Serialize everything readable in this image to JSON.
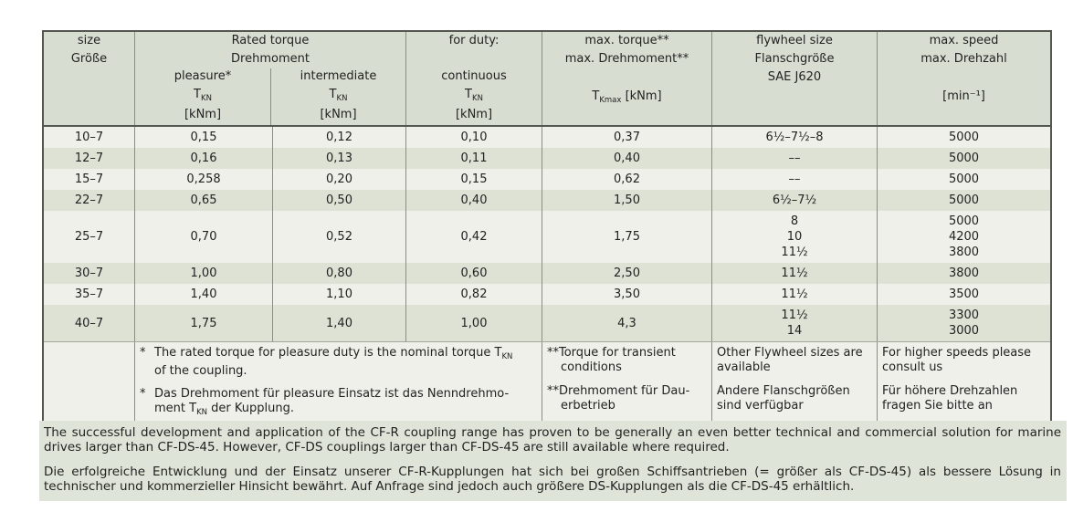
{
  "colors": {
    "header_bg": "#d8ddd1",
    "row_light": "#eef0e9",
    "row_dark": "#dde2d5",
    "band_bg": "#dfe4d8",
    "border_dark": "#54574f",
    "border_light": "#898d84",
    "text": "#222222"
  },
  "table": {
    "header": {
      "size": [
        "size",
        "Größe"
      ],
      "rated_torque": [
        "Rated torque",
        "Drehmoment"
      ],
      "pleasure": {
        "label": "pleasure*",
        "symbol": "T",
        "symbol_sub": "KN",
        "unit": "[kNm]"
      },
      "intermediate": {
        "label": "intermediate",
        "symbol": "T",
        "symbol_sub": "KN",
        "unit": "[kNm]"
      },
      "duty_label": "for duty:",
      "continuous": {
        "label": "continuous",
        "symbol": "T",
        "symbol_sub": "KN",
        "unit": "[kNm]"
      },
      "max_torque": {
        "line1": "max. torque**",
        "line2": "max. Drehmoment**",
        "symbol": "T",
        "symbol_sub": "Kmax",
        "unit": "[kNm]"
      },
      "flywheel": [
        "flywheel size",
        "Flanschgröße",
        "SAE J620"
      ],
      "max_speed": [
        "max. speed",
        "max. Drehzahl",
        "[min⁻¹]"
      ]
    },
    "rows": [
      {
        "size": "10–7",
        "pleasure": "0,15",
        "intermediate": "0,12",
        "continuous": "0,10",
        "max_torque": "0,37",
        "flywheel": [
          "6½–7½–8"
        ],
        "speed": [
          "5000"
        ]
      },
      {
        "size": "12–7",
        "pleasure": "0,16",
        "intermediate": "0,13",
        "continuous": "0,11",
        "max_torque": "0,40",
        "flywheel": [
          "––"
        ],
        "speed": [
          "5000"
        ]
      },
      {
        "size": "15–7",
        "pleasure": "0,258",
        "intermediate": "0,20",
        "continuous": "0,15",
        "max_torque": "0,62",
        "flywheel": [
          "––"
        ],
        "speed": [
          "5000"
        ]
      },
      {
        "size": "22–7",
        "pleasure": "0,65",
        "intermediate": "0,50",
        "continuous": "0,40",
        "max_torque": "1,50",
        "flywheel": [
          "6½–7½"
        ],
        "speed": [
          "5000"
        ]
      },
      {
        "size": "25–7",
        "pleasure": "0,70",
        "intermediate": "0,52",
        "continuous": "0,42",
        "max_torque": "1,75",
        "flywheel": [
          "8",
          "10",
          "11½"
        ],
        "speed": [
          "5000",
          "4200",
          "3800"
        ]
      },
      {
        "size": "30–7",
        "pleasure": "1,00",
        "intermediate": "0,80",
        "continuous": "0,60",
        "max_torque": "2,50",
        "flywheel": [
          "11½"
        ],
        "speed": [
          "3800"
        ]
      },
      {
        "size": "35–7",
        "pleasure": "1,40",
        "intermediate": "1,10",
        "continuous": "0,82",
        "max_torque": "3,50",
        "flywheel": [
          "11½"
        ],
        "speed": [
          "3500"
        ]
      },
      {
        "size": "40–7",
        "pleasure": "1,75",
        "intermediate": "1,40",
        "continuous": "1,00",
        "max_torque": "4,3",
        "flywheel": [
          "11½",
          "14"
        ],
        "speed": [
          "3300",
          "3000"
        ]
      }
    ],
    "footnotes": {
      "rated_note_en": {
        "marker": "*",
        "line1_pre": "The rated torque for pleasure duty is the nominal torque T",
        "line1_sub": "KN",
        "line2": "of the coupling."
      },
      "rated_note_de": {
        "marker": "*",
        "line1": "Das Drehmoment für pleasure Einsatz ist das Nenndrehmo-",
        "line2_pre": "ment T",
        "line2_sub": "KN",
        "line2_post": " der Kupplung."
      },
      "max_torque_note": {
        "en_line1": "**Torque for transient",
        "en_line2": "conditions",
        "de_line1": "**Drehmoment für Dau-",
        "de_line2": "erbetrieb"
      },
      "flywheel_note": {
        "en": "Other Flywheel sizes are available",
        "de": "Andere Flanschgrößen sind verfügbar"
      },
      "speed_note": {
        "en": "For higher speeds please consult us",
        "de": "Für höhere Drehzahlen fragen Sie bitte an"
      }
    }
  },
  "paragraphs": {
    "en": "The successful development and application of the CF-R coupling range has proven to be generally an even better technical and commercial solution for marine drives larger than CF-DS-45. However, CF-DS couplings larger than CF-DS-45 are still available where required.",
    "de": "Die erfolgreiche Entwicklung und der Einsatz unserer CF-R-Kupplungen hat sich bei großen Schiffsantrieben (= größer als CF-DS-45) als bessere Lösung in technischer und kommerzieller Hinsicht bewährt. Auf Anfrage sind jedoch auch größere DS-Kupplungen als die CF-DS-45 erhältlich."
  }
}
